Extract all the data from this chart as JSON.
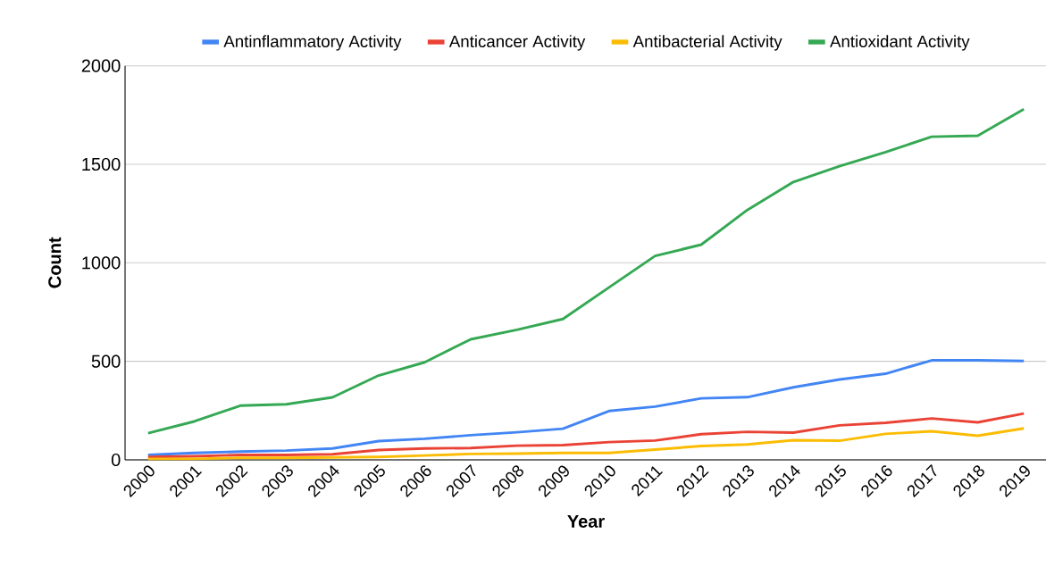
{
  "chart_data": {
    "type": "line",
    "xlabel": "Year",
    "ylabel": "Count",
    "categories": [
      "2000",
      "2001",
      "2002",
      "2003",
      "2004",
      "2005",
      "2006",
      "2007",
      "2008",
      "2009",
      "2010",
      "2011",
      "2012",
      "2013",
      "2014",
      "2015",
      "2016",
      "2017",
      "2018",
      "2019"
    ],
    "series": [
      {
        "name": "Antinflammatory Activity",
        "color": "#4285f4",
        "values": [
          25,
          35,
          42,
          47,
          58,
          95,
          107,
          125,
          140,
          158,
          248,
          270,
          312,
          318,
          368,
          408,
          437,
          505,
          505,
          502
        ]
      },
      {
        "name": "Anticancer Activity",
        "color": "#ea4335",
        "values": [
          15,
          18,
          25,
          25,
          28,
          50,
          58,
          60,
          72,
          75,
          90,
          98,
          130,
          142,
          138,
          175,
          188,
          210,
          190,
          235
        ]
      },
      {
        "name": "Antibacterial Activity",
        "color": "#fbbc04",
        "values": [
          5,
          5,
          10,
          10,
          12,
          15,
          22,
          30,
          32,
          35,
          35,
          52,
          70,
          78,
          100,
          97,
          132,
          145,
          122,
          160
        ]
      },
      {
        "name": "Antioxidant Activity",
        "color": "#34a853",
        "values": [
          135,
          195,
          275,
          282,
          317,
          428,
          495,
          612,
          660,
          715,
          875,
          1035,
          1092,
          1268,
          1410,
          1490,
          1562,
          1640,
          1645,
          1780
        ]
      }
    ],
    "ylim": [
      0,
      2000
    ],
    "yticks": [
      0,
      500,
      1000,
      1500,
      2000
    ],
    "grid": "y",
    "legend": "top",
    "marker": "none",
    "line_style": "solid"
  }
}
